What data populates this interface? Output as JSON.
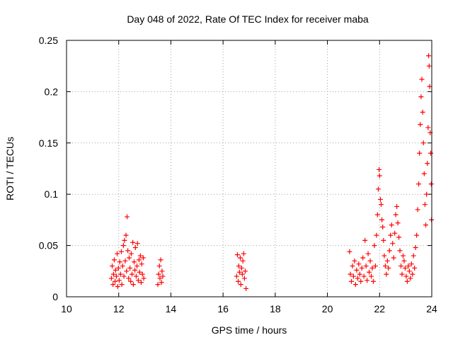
{
  "chart_data": {
    "type": "scatter",
    "title": "Day 048 of 2022, Rate Of TEC Index for receiver maba",
    "xlabel": "GPS time / hours",
    "ylabel": "ROTI / TECUs",
    "xlim": [
      10,
      24
    ],
    "ylim": [
      0,
      0.25
    ],
    "xticks": [
      10,
      12,
      14,
      16,
      18,
      20,
      22,
      24
    ],
    "yticks": [
      0,
      0.05,
      0.1,
      0.15,
      0.2,
      0.25
    ],
    "xtick_labels": [
      "10",
      "12",
      "14",
      "16",
      "18",
      "20",
      "22",
      "24"
    ],
    "ytick_labels": [
      "0",
      "0.05",
      "0.1",
      "0.15",
      "0.2",
      "0.25"
    ],
    "grid": true,
    "marker": "+",
    "color": "#ff0000",
    "series": [
      {
        "name": "ROTI",
        "points": [
          [
            11.72,
            0.018
          ],
          [
            11.75,
            0.03
          ],
          [
            11.78,
            0.012
          ],
          [
            11.8,
            0.022
          ],
          [
            11.83,
            0.036
          ],
          [
            11.86,
            0.015
          ],
          [
            11.88,
            0.026
          ],
          [
            11.91,
            0.02
          ],
          [
            11.94,
            0.042
          ],
          [
            11.96,
            0.01
          ],
          [
            11.99,
            0.028
          ],
          [
            12.02,
            0.016
          ],
          [
            12.04,
            0.034
          ],
          [
            12.07,
            0.022
          ],
          [
            12.1,
            0.044
          ],
          [
            12.12,
            0.012
          ],
          [
            12.15,
            0.03
          ],
          [
            12.18,
            0.05
          ],
          [
            12.2,
            0.02
          ],
          [
            12.22,
            0.055
          ],
          [
            12.25,
            0.035
          ],
          [
            12.28,
            0.06
          ],
          [
            12.3,
            0.025
          ],
          [
            12.32,
            0.078
          ],
          [
            12.35,
            0.045
          ],
          [
            12.38,
            0.018
          ],
          [
            12.4,
            0.038
          ],
          [
            12.43,
            0.028
          ],
          [
            12.46,
            0.015
          ],
          [
            12.48,
            0.042
          ],
          [
            12.51,
            0.022
          ],
          [
            12.54,
            0.053
          ],
          [
            12.56,
            0.012
          ],
          [
            12.59,
            0.034
          ],
          [
            12.62,
            0.026
          ],
          [
            12.64,
            0.048
          ],
          [
            12.67,
            0.02
          ],
          [
            12.7,
            0.03
          ],
          [
            12.72,
            0.052
          ],
          [
            12.75,
            0.016
          ],
          [
            12.78,
            0.036
          ],
          [
            12.8,
            0.024
          ],
          [
            12.83,
            0.04
          ],
          [
            12.86,
            0.014
          ],
          [
            12.88,
            0.032
          ],
          [
            12.91,
            0.022
          ],
          [
            12.94,
            0.038
          ],
          [
            12.96,
            0.018
          ],
          [
            13.5,
            0.012
          ],
          [
            13.53,
            0.022
          ],
          [
            13.56,
            0.03
          ],
          [
            13.58,
            0.018
          ],
          [
            13.61,
            0.036
          ],
          [
            13.64,
            0.014
          ],
          [
            13.66,
            0.025
          ],
          [
            13.69,
            0.02
          ],
          [
            16.52,
            0.02
          ],
          [
            16.55,
            0.041
          ],
          [
            16.58,
            0.015
          ],
          [
            16.6,
            0.03
          ],
          [
            16.63,
            0.024
          ],
          [
            16.66,
            0.038
          ],
          [
            16.68,
            0.012
          ],
          [
            16.71,
            0.028
          ],
          [
            16.74,
            0.022
          ],
          [
            16.76,
            0.035
          ],
          [
            16.79,
            0.042
          ],
          [
            16.82,
            0.018
          ],
          [
            16.85,
            0.025
          ],
          [
            16.88,
            0.008
          ],
          [
            20.85,
            0.044
          ],
          [
            20.88,
            0.022
          ],
          [
            20.92,
            0.015
          ],
          [
            20.96,
            0.03
          ],
          [
            21.0,
            0.02
          ],
          [
            21.04,
            0.035
          ],
          [
            21.08,
            0.012
          ],
          [
            21.12,
            0.026
          ],
          [
            21.16,
            0.018
          ],
          [
            21.2,
            0.032
          ],
          [
            21.24,
            0.022
          ],
          [
            21.28,
            0.015
          ],
          [
            21.32,
            0.028
          ],
          [
            21.36,
            0.038
          ],
          [
            21.4,
            0.02
          ],
          [
            21.44,
            0.055
          ],
          [
            21.48,
            0.03
          ],
          [
            21.52,
            0.016
          ],
          [
            21.56,
            0.042
          ],
          [
            21.6,
            0.024
          ],
          [
            21.64,
            0.035
          ],
          [
            21.68,
            0.02
          ],
          [
            21.72,
            0.028
          ],
          [
            21.76,
            0.015
          ],
          [
            21.8,
            0.05
          ],
          [
            21.84,
            0.03
          ],
          [
            21.88,
            0.06
          ],
          [
            21.92,
            0.08
          ],
          [
            21.95,
            0.105
          ],
          [
            21.98,
            0.124
          ],
          [
            22.0,
            0.118
          ],
          [
            22.03,
            0.095
          ],
          [
            22.06,
            0.09
          ],
          [
            22.09,
            0.075
          ],
          [
            22.12,
            0.068
          ],
          [
            22.15,
            0.055
          ],
          [
            22.18,
            0.04
          ],
          [
            22.22,
            0.03
          ],
          [
            22.26,
            0.022
          ],
          [
            22.3,
            0.035
          ],
          [
            22.34,
            0.028
          ],
          [
            22.38,
            0.045
          ],
          [
            22.42,
            0.06
          ],
          [
            22.46,
            0.07
          ],
          [
            22.5,
            0.052
          ],
          [
            22.54,
            0.038
          ],
          [
            22.58,
            0.062
          ],
          [
            22.62,
            0.08
          ],
          [
            22.66,
            0.088
          ],
          [
            22.7,
            0.072
          ],
          [
            22.74,
            0.058
          ],
          [
            22.78,
            0.045
          ],
          [
            22.82,
            0.03
          ],
          [
            22.86,
            0.022
          ],
          [
            22.9,
            0.04
          ],
          [
            22.94,
            0.035
          ],
          [
            22.98,
            0.028
          ],
          [
            23.02,
            0.02
          ],
          [
            23.06,
            0.015
          ],
          [
            23.1,
            0.03
          ],
          [
            23.14,
            0.025
          ],
          [
            23.18,
            0.018
          ],
          [
            23.22,
            0.032
          ],
          [
            23.26,
            0.022
          ],
          [
            23.3,
            0.04
          ],
          [
            23.34,
            0.028
          ],
          [
            23.38,
            0.048
          ],
          [
            23.42,
            0.06
          ],
          [
            23.46,
            0.085
          ],
          [
            23.5,
            0.11
          ],
          [
            23.53,
            0.14
          ],
          [
            23.56,
            0.168
          ],
          [
            23.59,
            0.195
          ],
          [
            23.62,
            0.212
          ],
          [
            23.65,
            0.18
          ],
          [
            23.68,
            0.15
          ],
          [
            23.71,
            0.12
          ],
          [
            23.74,
            0.09
          ],
          [
            23.77,
            0.07
          ],
          [
            23.8,
            0.1
          ],
          [
            23.83,
            0.13
          ],
          [
            23.86,
            0.165
          ],
          [
            23.88,
            0.235
          ],
          [
            23.9,
            0.225
          ],
          [
            23.92,
            0.205
          ],
          [
            23.94,
            0.16
          ],
          [
            23.96,
            0.14
          ],
          [
            23.98,
            0.11
          ],
          [
            23.99,
            0.075
          ]
        ]
      }
    ]
  }
}
